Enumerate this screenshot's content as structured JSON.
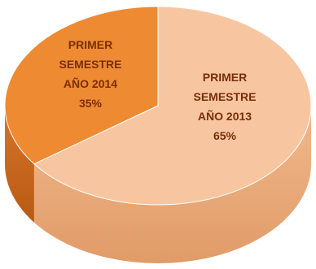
{
  "chart_data": {
    "type": "pie",
    "title": "",
    "style": "3d-pie",
    "slices": [
      {
        "label": "PRIMER SEMESTRE AÑO 2013",
        "label_lines": [
          "PRIMER",
          "SEMESTRE",
          "AÑO 2013"
        ],
        "value": 65,
        "value_text": "65%",
        "color": "#f7c6a0",
        "side_color": "#e6a77a"
      },
      {
        "label": "PRIMER SEMESTRE AÑO 2014",
        "label_lines": [
          "PRIMER",
          "SEMESTRE",
          "AÑO 2014"
        ],
        "value": 35,
        "value_text": "35%",
        "color": "#ee8a32",
        "side_color": "#c8661a"
      }
    ]
  }
}
